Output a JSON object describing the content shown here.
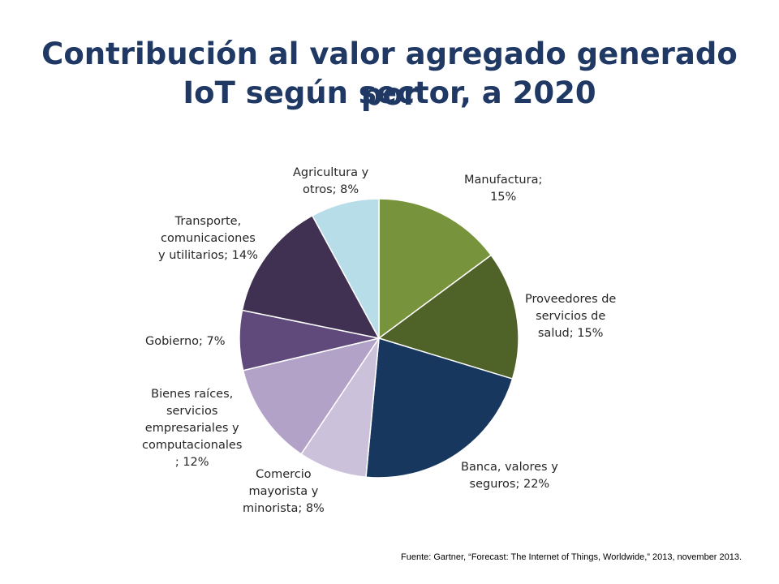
{
  "title_lines": [
    "Contribución al valor agregado generado por",
    "IoT según sector, a 2020"
  ],
  "source": "Fuente: Gartner, “Forecast: The Internet of Things, Worldwide,” 2013, november 2013.",
  "chart_data": {
    "type": "pie",
    "title": "Contribución al valor agregado generado por IoT según sector, a 2020",
    "unit": "%",
    "slices": [
      {
        "name": "Manufactura",
        "value": 15,
        "color": "#77933C",
        "label_lines": [
          "Manufactura;",
          "15%"
        ]
      },
      {
        "name": "Proveedores de servicios de salud",
        "value": 15,
        "color": "#4F6228",
        "label_lines": [
          "Proveedores de",
          "servicios de",
          "salud; 15%"
        ]
      },
      {
        "name": "Banca, valores y seguros",
        "value": 22,
        "color": "#17375E",
        "label_lines": [
          "Banca, valores y",
          "seguros; 22%"
        ]
      },
      {
        "name": "Comercio mayorista y minorista",
        "value": 8,
        "color": "#CCC1DA",
        "label_lines": [
          "Comercio",
          "mayorista y",
          "minorista; 8%"
        ]
      },
      {
        "name": "Bienes raíces, servicios empresariales y computacionales",
        "value": 12,
        "color": "#B3A2C7",
        "label_lines": [
          "Bienes raíces,",
          "servicios",
          "empresariales y",
          "computacionales",
          "; 12%"
        ]
      },
      {
        "name": "Gobierno",
        "value": 7,
        "color": "#604A7B",
        "label_lines": [
          "Gobierno; 7%"
        ]
      },
      {
        "name": "Transporte, comunicaciones y utilitarios",
        "value": 14,
        "color": "#403152",
        "label_lines": [
          "Transporte,",
          "comunicaciones",
          "y utilitarios; 14%"
        ]
      },
      {
        "name": "Agricultura y otros",
        "value": 8,
        "color": "#B7DDE8",
        "label_lines": [
          "Agricultura y",
          "otros; 8%"
        ]
      }
    ]
  }
}
